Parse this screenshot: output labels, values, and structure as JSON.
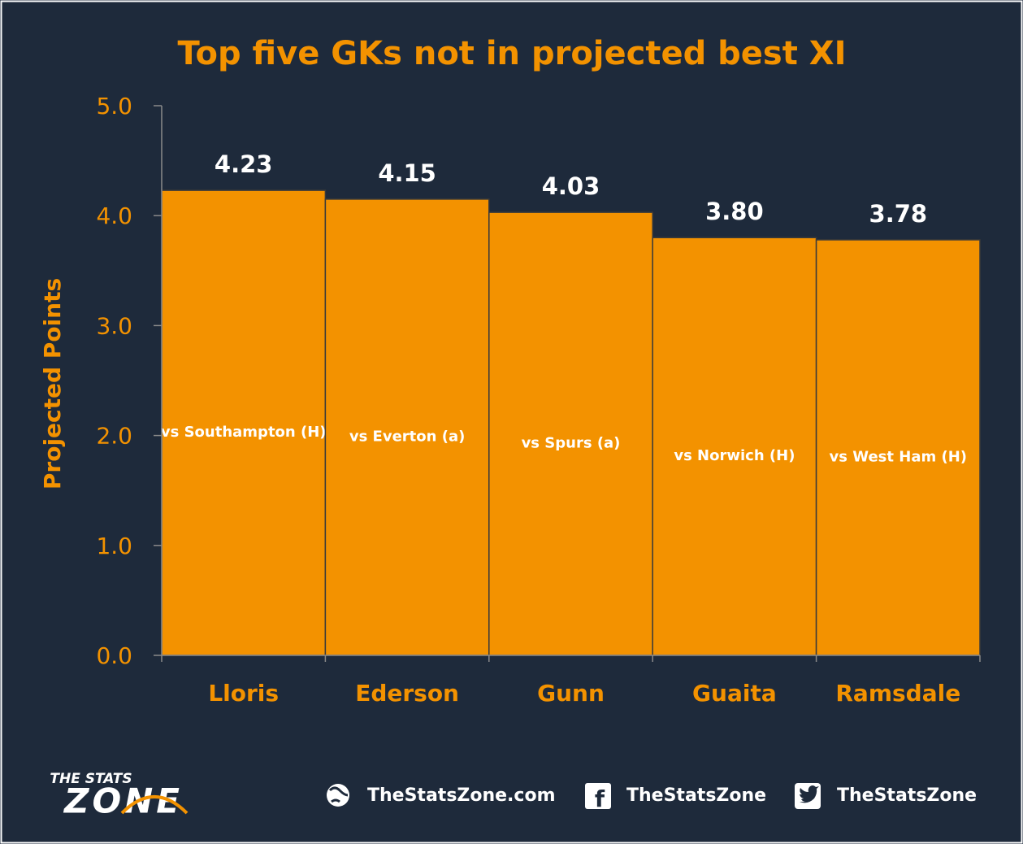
{
  "chart_data": {
    "type": "bar",
    "title": "Top five GKs not in projected best XI",
    "y_label": "Projected Points",
    "categories": [
      "Lloris",
      "Ederson",
      "Gunn",
      "Guaita",
      "Ramsdale"
    ],
    "values": [
      4.23,
      4.15,
      4.03,
      3.8,
      3.78
    ],
    "value_labels": [
      "4.23",
      "4.15",
      "4.03",
      "3.80",
      "3.78"
    ],
    "annotations": [
      "vs Southampton (H)",
      "vs Everton (a)",
      "vs Spurs (a)",
      "vs Norwich (H)",
      "vs West Ham (H)"
    ],
    "color": "#f39200",
    "ylim": [
      0,
      5
    ],
    "yticks": [
      {
        "value": 0,
        "label": "0.0"
      },
      {
        "value": 1,
        "label": "1.0"
      },
      {
        "value": 2,
        "label": "2.0"
      },
      {
        "value": 3,
        "label": "3.0"
      },
      {
        "value": 4,
        "label": "4.0"
      },
      {
        "value": 5,
        "label": "5.0"
      }
    ],
    "grid": false
  },
  "footer": {
    "logo_top": "THE STATS",
    "logo_main": "ZONE",
    "website": "TheStatsZone.com",
    "facebook": "TheStatsZone",
    "twitter": "TheStatsZone"
  }
}
